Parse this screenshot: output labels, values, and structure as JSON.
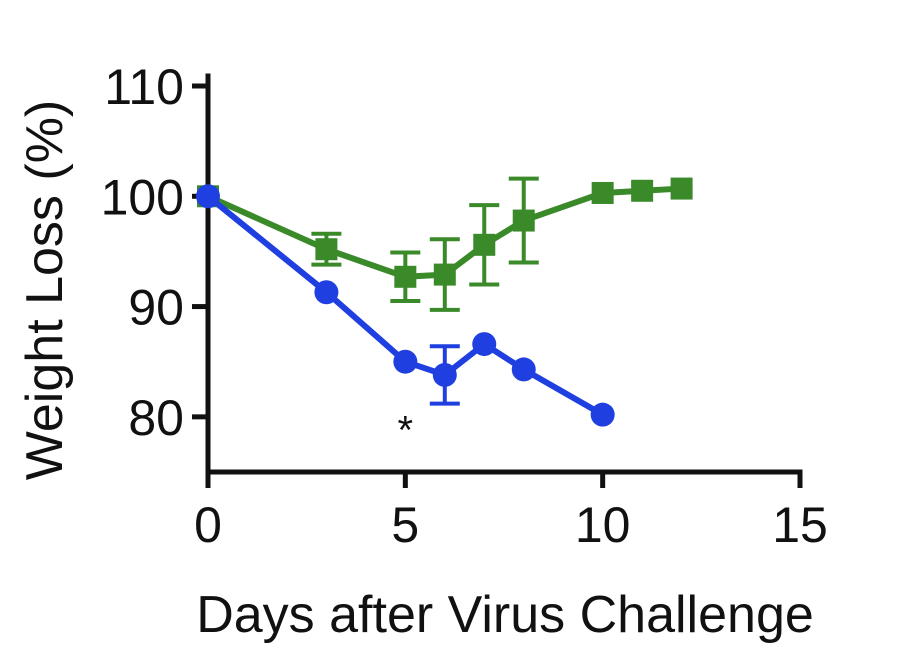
{
  "chart_data": {
    "type": "line",
    "title": "",
    "xlabel": "Days after Virus Challenge",
    "ylabel": "Weight Loss (%)",
    "xlim": [
      0,
      15
    ],
    "ylim": [
      75,
      110
    ],
    "xticks": [
      0,
      5,
      10,
      15
    ],
    "yticks": [
      80,
      90,
      100,
      110
    ],
    "grid": false,
    "annotations": [
      {
        "text": "*",
        "x": 5,
        "y": 80.3
      }
    ],
    "series": [
      {
        "color": "#3a8a2a",
        "marker": "square",
        "points": [
          {
            "x": 0,
            "y": 100,
            "err": 0
          },
          {
            "x": 3,
            "y": 95.2,
            "err": 1.4
          },
          {
            "x": 5,
            "y": 92.7,
            "err": 2.2
          },
          {
            "x": 6,
            "y": 92.9,
            "err": 3.2
          },
          {
            "x": 7,
            "y": 95.6,
            "err": 3.6
          },
          {
            "x": 8,
            "y": 97.8,
            "err": 3.8
          },
          {
            "x": 10,
            "y": 100.3,
            "err": 0
          },
          {
            "x": 11,
            "y": 100.5,
            "err": 0
          },
          {
            "x": 12,
            "y": 100.7,
            "err": 0
          }
        ]
      },
      {
        "color": "#1f3fe0",
        "marker": "circle",
        "points": [
          {
            "x": 0,
            "y": 100,
            "err": 0
          },
          {
            "x": 3,
            "y": 91.3,
            "err": 0
          },
          {
            "x": 5,
            "y": 85.0,
            "err": 0
          },
          {
            "x": 6,
            "y": 83.8,
            "err": 2.6
          },
          {
            "x": 7,
            "y": 86.6,
            "err": 0
          },
          {
            "x": 8,
            "y": 84.3,
            "err": 0
          },
          {
            "x": 10,
            "y": 80.2,
            "err": 0
          }
        ]
      }
    ]
  }
}
